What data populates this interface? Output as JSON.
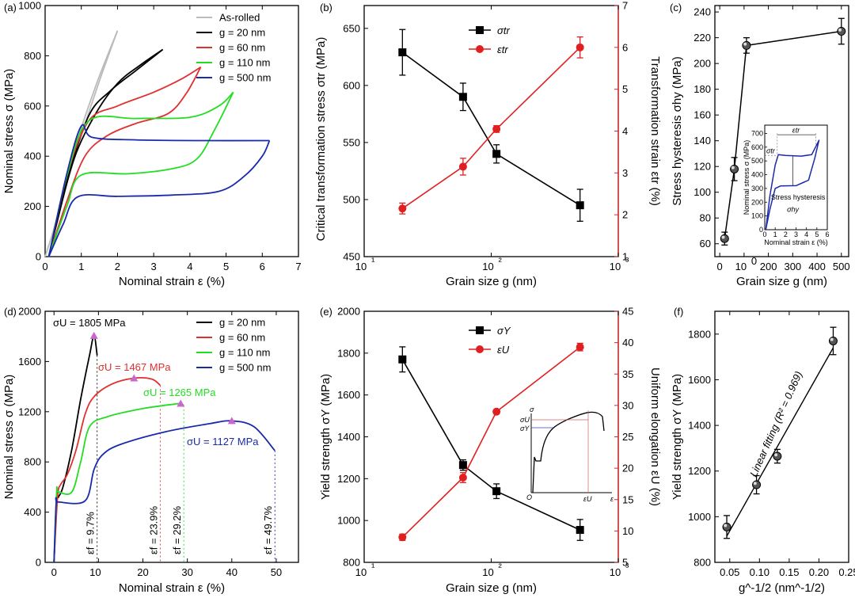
{
  "chart_data": [
    {
      "panel": "(a)",
      "type": "line",
      "xlabel": "Nominal strain ε (%)",
      "ylabel": "Nominal stress σ (MPa)",
      "xlim": [
        0,
        7
      ],
      "ylim": [
        0,
        1000
      ],
      "xticks": [
        "0",
        "1",
        "2",
        "3",
        "4",
        "5",
        "6",
        "7"
      ],
      "yticks": [
        "0",
        "200",
        "400",
        "600",
        "800",
        "1000"
      ],
      "legend_position": "top-right",
      "series": [
        {
          "name": "As-rolled",
          "color": "#bbbbbb",
          "load": [
            [
              0,
              0
            ],
            [
              0.3,
              140
            ],
            [
              0.8,
              420
            ],
            [
              1.4,
              680
            ],
            [
              2.0,
              900
            ]
          ],
          "unload": [
            [
              2.0,
              900
            ],
            [
              1.5,
              700
            ],
            [
              1.0,
              480
            ],
            [
              0.5,
              240
            ],
            [
              0.1,
              0
            ]
          ]
        },
        {
          "name": "g = 20 nm",
          "color": "#000000",
          "load": [
            [
              0.1,
              0
            ],
            [
              0.6,
              300
            ],
            [
              1.2,
              560
            ],
            [
              1.8,
              660
            ],
            [
              2.5,
              740
            ],
            [
              3.25,
              825
            ]
          ],
          "unload": [
            [
              3.25,
              825
            ],
            [
              2.6,
              760
            ],
            [
              2.0,
              690
            ],
            [
              1.4,
              570
            ],
            [
              0.8,
              390
            ],
            [
              0.3,
              120
            ],
            [
              0.1,
              0
            ]
          ]
        },
        {
          "name": "g = 60 nm",
          "color": "#e03030",
          "load": [
            [
              0.1,
              0
            ],
            [
              0.6,
              320
            ],
            [
              1.2,
              540
            ],
            [
              2.0,
              600
            ],
            [
              3.0,
              655
            ],
            [
              3.8,
              710
            ],
            [
              4.3,
              755
            ]
          ],
          "unload": [
            [
              4.3,
              755
            ],
            [
              3.9,
              650
            ],
            [
              3.4,
              570
            ],
            [
              2.5,
              530
            ],
            [
              1.7,
              480
            ],
            [
              1.1,
              400
            ],
            [
              0.6,
              220
            ],
            [
              0.1,
              0
            ]
          ]
        },
        {
          "name": "g = 110 nm",
          "color": "#22dd22",
          "load": [
            [
              0.1,
              0
            ],
            [
              0.6,
              320
            ],
            [
              1.2,
              540
            ],
            [
              2.5,
              550
            ],
            [
              4.0,
              555
            ],
            [
              4.8,
              600
            ],
            [
              5.2,
              655
            ]
          ],
          "unload": [
            [
              5.2,
              655
            ],
            [
              4.7,
              510
            ],
            [
              4.2,
              390
            ],
            [
              3.5,
              350
            ],
            [
              2.3,
              330
            ],
            [
              1.0,
              325
            ],
            [
              0.6,
              200
            ],
            [
              0.1,
              0
            ]
          ]
        },
        {
          "name": "g = 500 nm",
          "color": "#1a2aaa",
          "load": [
            [
              0.1,
              0
            ],
            [
              0.6,
              330
            ],
            [
              1.0,
              520
            ],
            [
              1.3,
              475
            ],
            [
              2.5,
              465
            ],
            [
              4.5,
              462
            ],
            [
              6.2,
              462
            ]
          ],
          "unload": [
            [
              6.2,
              462
            ],
            [
              6.0,
              400
            ],
            [
              5.5,
              320
            ],
            [
              4.8,
              260
            ],
            [
              3.5,
              245
            ],
            [
              2.0,
              240
            ],
            [
              0.9,
              238
            ],
            [
              0.5,
              130
            ],
            [
              0.1,
              0
            ]
          ]
        }
      ]
    },
    {
      "panel": "(b)",
      "type": "line",
      "xscale": "log",
      "xlabel": "Grain size g (nm)",
      "ylabel": "Critical transformation stress σtr (MPa)",
      "y2label": "Transformation strain εtr (%)",
      "xlim": [
        10,
        1000
      ],
      "ylim": [
        450,
        670
      ],
      "y2lim": [
        1,
        7
      ],
      "xticks": [
        "10¹",
        "10²",
        "10³"
      ],
      "yticks": [
        "450",
        "500",
        "550",
        "600",
        "650"
      ],
      "y2ticks": [
        "1",
        "2",
        "3",
        "4",
        "5",
        "6",
        "7"
      ],
      "legend_position": "top-center",
      "x": [
        20,
        60,
        110,
        500
      ],
      "series": [
        {
          "name": "σtr",
          "axis": "left",
          "color": "#000000",
          "marker": "square",
          "values": [
            629,
            590,
            540,
            495
          ],
          "errors": [
            20,
            12,
            8,
            14
          ]
        },
        {
          "name": "εtr",
          "axis": "right",
          "color": "#e02020",
          "marker": "circle",
          "values": [
            2.15,
            3.15,
            4.05,
            6.0
          ],
          "errors": [
            0.13,
            0.2,
            0.08,
            0.25
          ]
        }
      ]
    },
    {
      "panel": "(c)",
      "type": "line",
      "xlabel": "Grain size g (nm)",
      "ylabel": "Stress hysteresis σhy (MPa)",
      "xlim": [
        -20,
        530
      ],
      "ylim": [
        50,
        245
      ],
      "xticks": [
        "0",
        "100",
        "200",
        "300",
        "400",
        "500"
      ],
      "yticks": [
        "60",
        "80",
        "100",
        "120",
        "140",
        "160",
        "180",
        "200",
        "220",
        "240"
      ],
      "x": [
        20,
        60,
        110,
        500
      ],
      "series": [
        {
          "name": "σhy",
          "color": "#000000",
          "marker": "circle",
          "values": [
            64,
            118,
            214,
            225
          ],
          "errors": [
            5,
            9,
            6,
            10
          ]
        }
      ],
      "inset": {
        "xlabel": "Nominal strain ε (%)",
        "ylabel": "Nominal stress σ (MPa)",
        "xticks": [
          "0",
          "1",
          "2",
          "3",
          "4",
          "5",
          "6"
        ],
        "yticks": [
          "0",
          "100",
          "200",
          "300",
          "400",
          "500",
          "600",
          "700"
        ],
        "annotations": [
          "εtr",
          "σtr",
          "Stress hysteresis",
          "σhy"
        ]
      }
    },
    {
      "panel": "(d)",
      "type": "line",
      "xlabel": "Nominal strain ε (%)",
      "ylabel": "Nominal stress σ (MPa)",
      "xlim": [
        -2,
        55
      ],
      "ylim": [
        0,
        2000
      ],
      "xticks": [
        "0",
        "10",
        "20",
        "30",
        "40",
        "50"
      ],
      "yticks": [
        "0",
        "400",
        "800",
        "1200",
        "1600",
        "2000"
      ],
      "legend_position": "top-right",
      "series": [
        {
          "name": "g = 20 nm",
          "color": "#000000",
          "points": [
            [
              0,
              0
            ],
            [
              0.6,
              480
            ],
            [
              1.0,
              520
            ],
            [
              2,
              600
            ],
            [
              4,
              900
            ],
            [
              6,
              1300
            ],
            [
              8,
              1650
            ],
            [
              9,
              1805
            ],
            [
              9.7,
              1650
            ]
          ],
          "peak": [
            9,
            1805
          ],
          "peak_label": "σU = 1805 MPa",
          "fracture_label": "εf = 9.7%",
          "fracture_x": 9.7
        },
        {
          "name": "g = 60 nm",
          "color": "#e03030",
          "points": [
            [
              0,
              0
            ],
            [
              0.8,
              520
            ],
            [
              1.5,
              620
            ],
            [
              3,
              700
            ],
            [
              5,
              900
            ],
            [
              7,
              1180
            ],
            [
              9,
              1320
            ],
            [
              13,
              1420
            ],
            [
              18,
              1467
            ],
            [
              22,
              1460
            ],
            [
              23.9,
              1410
            ]
          ],
          "peak": [
            18,
            1467
          ],
          "peak_label": "σU = 1467 MPa",
          "fracture_label": "εf = 23.9%",
          "fracture_x": 23.9
        },
        {
          "name": "g = 110 nm",
          "color": "#22dd22",
          "points": [
            [
              0,
              0
            ],
            [
              0.6,
              560
            ],
            [
              1,
              560
            ],
            [
              4,
              560
            ],
            [
              6,
              800
            ],
            [
              8,
              1080
            ],
            [
              12,
              1160
            ],
            [
              20,
              1225
            ],
            [
              27,
              1260
            ],
            [
              28.5,
              1265
            ],
            [
              29.2,
              1250
            ]
          ],
          "peak": [
            28.5,
            1265
          ],
          "peak_label": "σU = 1265 MPa",
          "fracture_label": "εf = 29.2%",
          "fracture_x": 29.2
        },
        {
          "name": "g = 500 nm",
          "color": "#1a2aaa",
          "points": [
            [
              0,
              0
            ],
            [
              0.5,
              480
            ],
            [
              1,
              480
            ],
            [
              7,
              490
            ],
            [
              9,
              740
            ],
            [
              11,
              860
            ],
            [
              15,
              940
            ],
            [
              25,
              1040
            ],
            [
              35,
              1105
            ],
            [
              40,
              1127
            ],
            [
              45,
              1080
            ],
            [
              49.7,
              890
            ]
          ],
          "peak": [
            40,
            1127
          ],
          "peak_label": "σU = 1127 MPa",
          "fracture_label": "εf = 49.7%",
          "fracture_x": 49.7
        }
      ]
    },
    {
      "panel": "(e)",
      "type": "line",
      "xscale": "log",
      "xlabel": "Grain size g (nm)",
      "ylabel": "Yield strength σY (MPa)",
      "y2label": "Uniform elongation εU (%)",
      "xlim": [
        10,
        1000
      ],
      "ylim": [
        800,
        2000
      ],
      "y2lim": [
        5,
        45
      ],
      "xticks": [
        "10¹",
        "10²",
        "10³"
      ],
      "yticks": [
        "800",
        "1000",
        "1200",
        "1400",
        "1600",
        "1800",
        "2000"
      ],
      "y2ticks": [
        "5",
        "10",
        "15",
        "20",
        "25",
        "30",
        "35",
        "40",
        "45"
      ],
      "legend_position": "top-center",
      "x": [
        20,
        60,
        110,
        500
      ],
      "series": [
        {
          "name": "σY",
          "axis": "left",
          "color": "#000000",
          "marker": "square",
          "values": [
            1770,
            1265,
            1140,
            955
          ],
          "errors": [
            60,
            25,
            35,
            50
          ]
        },
        {
          "name": "εU",
          "axis": "right",
          "color": "#e02020",
          "marker": "circle",
          "values": [
            9.0,
            18.5,
            29.0,
            39.3
          ],
          "errors": [
            0.5,
            0.8,
            0.3,
            0.6
          ]
        }
      ],
      "inset": {
        "labels": [
          "σ",
          "σU",
          "σY",
          "O",
          "εU",
          "ε"
        ]
      }
    },
    {
      "panel": "(f)",
      "type": "scatter",
      "xlabel": "g^-1/2 (nm^-1/2)",
      "ylabel": "Yield strength σY (MPa)",
      "xlim": [
        0.025,
        0.25
      ],
      "ylim": [
        800,
        1900
      ],
      "xticks": [
        "0.05",
        "0.10",
        "0.15",
        "0.20",
        "0.25"
      ],
      "yticks": [
        "800",
        "1000",
        "1200",
        "1400",
        "1600",
        "1800"
      ],
      "x": [
        0.045,
        0.095,
        0.13,
        0.224
      ],
      "values": [
        955,
        1140,
        1265,
        1770
      ],
      "errors": [
        50,
        40,
        30,
        60
      ],
      "fit": {
        "x": [
          0.045,
          0.224
        ],
        "y": [
          915,
          1740
        ]
      },
      "annotation": "Linear fitting (R² = 0.969)"
    }
  ]
}
